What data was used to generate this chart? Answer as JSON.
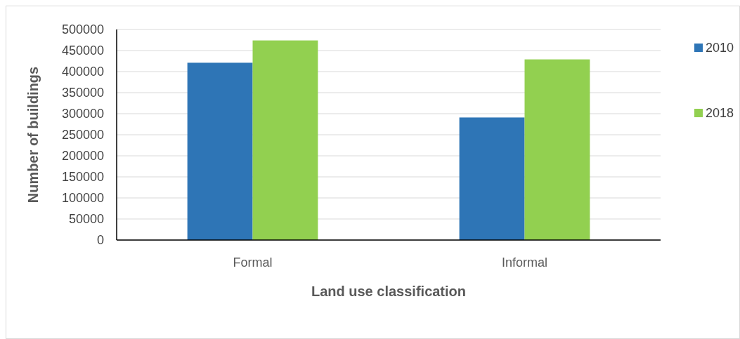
{
  "chart_data": {
    "type": "bar",
    "xlabel": "Land use classification",
    "ylabel": "Number of buildings",
    "categories": [
      "Formal",
      "Informal"
    ],
    "series": [
      {
        "name": "2010",
        "color": "#2e75b6",
        "values": [
          421000,
          291000
        ]
      },
      {
        "name": "2018",
        "color": "#92d050",
        "values": [
          474000,
          429000
        ]
      }
    ],
    "ylim": [
      0,
      500000
    ],
    "yticks": [
      0,
      50000,
      100000,
      150000,
      200000,
      250000,
      300000,
      350000,
      400000,
      450000,
      500000
    ],
    "grid": "y",
    "legend": "right"
  }
}
